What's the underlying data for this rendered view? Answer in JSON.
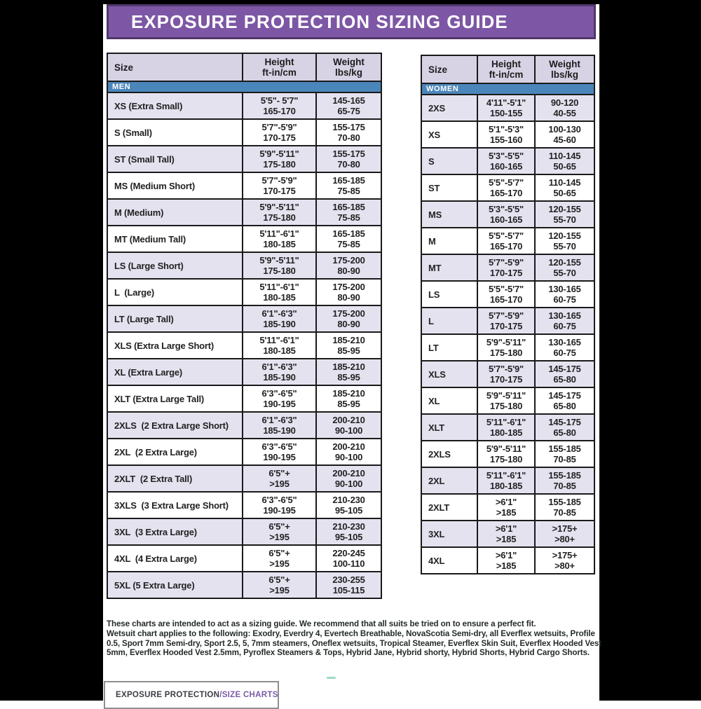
{
  "banner": {
    "title": "EXPOSURE PROTECTION SIZING GUIDE"
  },
  "colors": {
    "banner_purple": "#7d57a5",
    "banner_border": "#503669",
    "section_band_blue": "#4b86ba",
    "header_lavender": "#d8d2e5",
    "row_lavender": "#e5e2f0",
    "accent_purple": "#7a5ba6"
  },
  "men": {
    "section_label": "MEN",
    "headers": {
      "size": "Size",
      "height_line1": "Height",
      "height_line2": "ft-in/cm",
      "weight_line1": "Weight",
      "weight_line2": "lbs/kg"
    },
    "rows": [
      {
        "size": "XS (Extra Small)",
        "height1": "5'5\"- 5'7\"",
        "height2": "165-170",
        "weight1": "145-165",
        "weight2": "65-75"
      },
      {
        "size": "S (Small)",
        "height1": "5'7\"-5'9\"",
        "height2": "170-175",
        "weight1": "155-175",
        "weight2": "70-80"
      },
      {
        "size": "ST (Small Tall)",
        "height1": "5'9\"-5'11\"",
        "height2": "175-180",
        "weight1": "155-175",
        "weight2": "70-80"
      },
      {
        "size": "MS (Medium Short)",
        "height1": "5'7\"-5'9\"",
        "height2": "170-175",
        "weight1": "165-185",
        "weight2": "75-85"
      },
      {
        "size": "M (Medium)",
        "height1": "5'9\"-5'11\"",
        "height2": "175-180",
        "weight1": "165-185",
        "weight2": "75-85"
      },
      {
        "size": "MT (Medium Tall)",
        "height1": "5'11\"-6'1\"",
        "height2": "180-185",
        "weight1": "165-185",
        "weight2": "75-85"
      },
      {
        "size": "LS (Large Short)",
        "height1": "5'9\"-5'11\"",
        "height2": "175-180",
        "weight1": "175-200",
        "weight2": "80-90"
      },
      {
        "size": "L  (Large)",
        "height1": "5'11\"-6'1\"",
        "height2": "180-185",
        "weight1": "175-200",
        "weight2": "80-90"
      },
      {
        "size": "LT (Large Tall)",
        "height1": "6'1\"-6'3\"",
        "height2": "185-190",
        "weight1": "175-200",
        "weight2": "80-90"
      },
      {
        "size": "XLS (Extra Large Short)",
        "height1": "5'11\"-6'1\"",
        "height2": "180-185",
        "weight1": "185-210",
        "weight2": "85-95"
      },
      {
        "size": "XL (Extra Large)",
        "height1": "6'1\"-6'3\"",
        "height2": "185-190",
        "weight1": "185-210",
        "weight2": "85-95"
      },
      {
        "size": "XLT (Extra Large Tall)",
        "height1": "6'3\"-6'5\"",
        "height2": "190-195",
        "weight1": "185-210",
        "weight2": "85-95"
      },
      {
        "size": "2XLS  (2 Extra Large Short)",
        "height1": "6'1\"-6'3\"",
        "height2": "185-190",
        "weight1": "200-210",
        "weight2": "90-100"
      },
      {
        "size": "2XL  (2 Extra Large)",
        "height1": "6'3\"-6'5\"",
        "height2": "190-195",
        "weight1": "200-210",
        "weight2": "90-100"
      },
      {
        "size": "2XLT  (2 Extra Tall)",
        "height1": "6'5\"+",
        "height2": ">195",
        "weight1": "200-210",
        "weight2": "90-100"
      },
      {
        "size": "3XLS  (3 Extra Large Short)",
        "height1": "6'3\"-6'5\"",
        "height2": "190-195",
        "weight1": "210-230",
        "weight2": "95-105"
      },
      {
        "size": "3XL  (3 Extra Large)",
        "height1": "6'5\"+",
        "height2": ">195",
        "weight1": "210-230",
        "weight2": "95-105"
      },
      {
        "size": "4XL  (4 Extra Large)",
        "height1": "6'5\"+",
        "height2": ">195",
        "weight1": "220-245",
        "weight2": "100-110"
      },
      {
        "size": "5XL (5 Extra Large)",
        "height1": "6'5\"+",
        "height2": ">195",
        "weight1": "230-255",
        "weight2": "105-115"
      }
    ]
  },
  "women": {
    "section_label": "WOMEN",
    "headers": {
      "size": "Size",
      "height_line1": "Height",
      "height_line2": "ft-in/cm",
      "weight_line1": "Weight",
      "weight_line2": "lbs/kg"
    },
    "rows": [
      {
        "size": "2XS",
        "height1": "4'11\"-5'1\"",
        "height2": "150-155",
        "weight1": "90-120",
        "weight2": "40-55"
      },
      {
        "size": "XS",
        "height1": "5'1\"-5'3\"",
        "height2": "155-160",
        "weight1": "100-130",
        "weight2": "45-60"
      },
      {
        "size": "S",
        "height1": "5'3\"-5'5\"",
        "height2": "160-165",
        "weight1": "110-145",
        "weight2": "50-65"
      },
      {
        "size": "ST",
        "height1": "5'5\"-5'7\"",
        "height2": "165-170",
        "weight1": "110-145",
        "weight2": "50-65"
      },
      {
        "size": "MS",
        "height1": "5'3\"-5'5\"",
        "height2": "160-165",
        "weight1": "120-155",
        "weight2": "55-70"
      },
      {
        "size": "M",
        "height1": "5'5\"-5'7\"",
        "height2": "165-170",
        "weight1": "120-155",
        "weight2": "55-70"
      },
      {
        "size": "MT",
        "height1": "5'7\"-5'9\"",
        "height2": "170-175",
        "weight1": "120-155",
        "weight2": "55-70"
      },
      {
        "size": "LS",
        "height1": "5'5\"-5'7\"",
        "height2": "165-170",
        "weight1": "130-165",
        "weight2": "60-75"
      },
      {
        "size": "L",
        "height1": "5'7\"-5'9\"",
        "height2": "170-175",
        "weight1": "130-165",
        "weight2": "60-75"
      },
      {
        "size": "LT",
        "height1": "5'9\"-5'11\"",
        "height2": "175-180",
        "weight1": "130-165",
        "weight2": "60-75"
      },
      {
        "size": "XLS",
        "height1": "5'7\"-5'9\"",
        "height2": "170-175",
        "weight1": "145-175",
        "weight2": "65-80"
      },
      {
        "size": "XL",
        "height1": "5'9\"-5'11\"",
        "height2": "175-180",
        "weight1": "145-175",
        "weight2": "65-80"
      },
      {
        "size": "XLT",
        "height1": "5'11\"-6'1\"",
        "height2": "180-185",
        "weight1": "145-175",
        "weight2": "65-80"
      },
      {
        "size": "2XLS",
        "height1": "5'9\"-5'11\"",
        "height2": "175-180",
        "weight1": "155-185",
        "weight2": "70-85"
      },
      {
        "size": "2XL",
        "height1": "5'11\"-6'1\"",
        "height2": "180-185",
        "weight1": "155-185",
        "weight2": "70-85"
      },
      {
        "size": "2XLT",
        "height1": ">6'1\"",
        "height2": ">185",
        "weight1": "155-185",
        "weight2": "70-85"
      },
      {
        "size": "3XL",
        "height1": ">6'1\"",
        "height2": ">185",
        "weight1": ">175+",
        "weight2": ">80+"
      },
      {
        "size": "4XL",
        "height1": ">6'1\"",
        "height2": ">185",
        "weight1": ">175+",
        "weight2": ">80+"
      }
    ]
  },
  "notes": {
    "line1": "These charts are intended to act as a sizing guide. We recommend that all suits be tried on to ensure a perfect fit.",
    "line2": "Wetsuit chart applies to the following: Exodry, Everdry 4, Evertech Breathable, NovaScotia Semi-dry, all Everflex wetsuits, Profile 0.5, Sport 7mm Semi-dry, Sport 2.5, 5, 7mm steamers, Oneflex wetsuits, Tropical Steamer, Everflex Skin Suit, Everflex Hooded Vest 5mm, Everflex Hooded Vest  2.5mm, Pyroflex Steamers & Tops, Hybrid Jane, Hybrid shorty, Hybrid Shorts, Hybrid Cargo Shorts."
  },
  "tab": {
    "label_dark": "EXPOSURE PROTECTION",
    "label_accent": "/SIZE CHARTS"
  }
}
